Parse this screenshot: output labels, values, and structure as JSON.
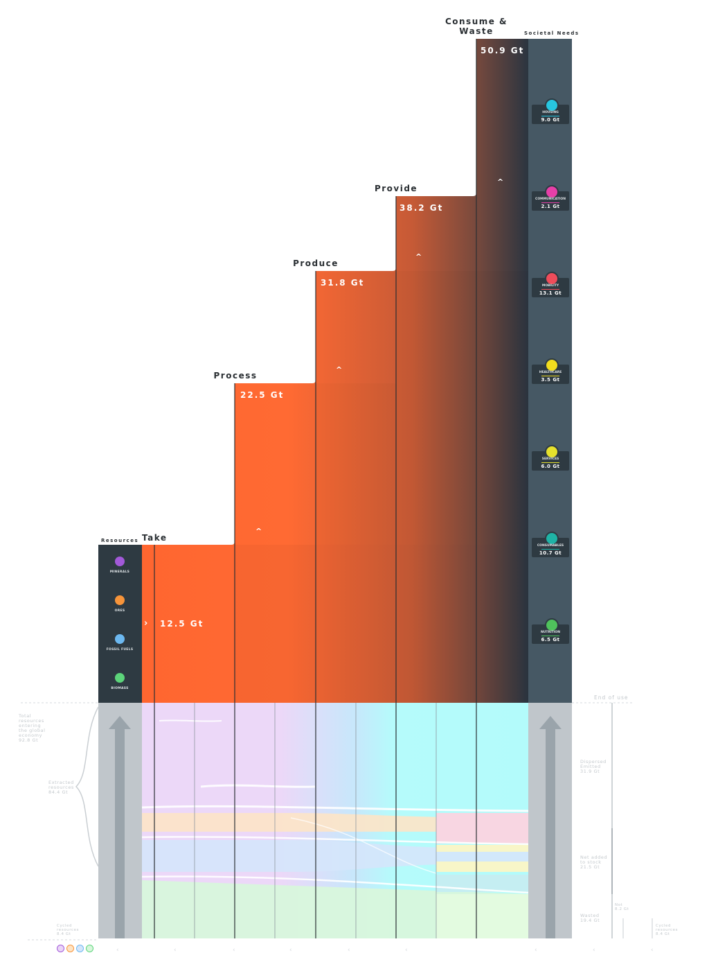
{
  "headers": {
    "resources": "Resources",
    "societal_needs": "Societal Needs",
    "end_of_use": "End of use"
  },
  "stages": [
    {
      "name": "Take",
      "value": 12.5,
      "label": "12.5 Gt"
    },
    {
      "name": "Process",
      "value": 22.5,
      "label": "22.5 Gt"
    },
    {
      "name": "Produce",
      "value": 31.8,
      "label": "31.8 Gt"
    },
    {
      "name": "Provide",
      "value": 38.2,
      "label": "38.2 Gt"
    },
    {
      "name": "Consume &\nWaste",
      "value": 50.9,
      "label": "50.9 Gt"
    }
  ],
  "resources": [
    {
      "name": "MINERALS",
      "icon": "mineral-icon",
      "color": "#a259d9"
    },
    {
      "name": "ORES",
      "icon": "ore-icon",
      "color": "#f7943a"
    },
    {
      "name": "FOSSIL FUELS",
      "icon": "fossil-fuel-icon",
      "color": "#6cb8f0"
    },
    {
      "name": "BIOMASS",
      "icon": "biomass-icon",
      "color": "#5cd47a"
    }
  ],
  "needs": [
    {
      "name": "HOUSING",
      "value": "9.0 Gt",
      "icon": "housing-icon",
      "color": "#27c6e0"
    },
    {
      "name": "COMMUNICATION",
      "value": "2.1 Gt",
      "icon": "communication-icon",
      "color": "#e63fa8"
    },
    {
      "name": "MOBILITY",
      "value": "13.1 Gt",
      "icon": "mobility-icon",
      "color": "#ef4c5a"
    },
    {
      "name": "HEALTHCARE",
      "value": "3.5 Gt",
      "icon": "healthcare-icon",
      "color": "#f2dd1e"
    },
    {
      "name": "SERVICES",
      "value": "6.0 Gt",
      "icon": "services-icon",
      "color": "#e6e12c"
    },
    {
      "name": "CONSUMABLES",
      "value": "10.7 Gt",
      "icon": "consumables-icon",
      "color": "#1fb3a6"
    },
    {
      "name": "NUTRITION",
      "value": "6.5 Gt",
      "icon": "nutrition-icon",
      "color": "#4fc25c"
    }
  ],
  "left_notes": {
    "total": "Total\nresources\nentering\nthe global\neconomy\n92.8 Gt",
    "extracted": "Extracted\nresources\n84.4 Gt",
    "cycled": "Cycled\nresources\n8.4 Gt"
  },
  "right_notes": {
    "dispersed": "Dispersed\nEmitted\n31.9 Gt",
    "net_added": "Net added\nto stock\n21.5 Gt",
    "wasted": "Wasted\n19.4 Gt",
    "small": "Not\n8.2 Gt",
    "cycled": "Cycled\nresources\n8.4 Gt"
  },
  "colors": {
    "orange": "#ff6a32",
    "dark": "#2e3a42",
    "panel": "#465864",
    "gray_band": "#c0c6cb",
    "minerals": "#ebd7f8",
    "ores": "#fde4c6",
    "fossil": "#d5e6fb",
    "biomass": "#d8f7dc",
    "cyan": "#b3fbfb",
    "pink": "#f8d6e2",
    "yellow": "#f8f6c8",
    "teal": "#c5eef2",
    "lightgreen": "#e3fbe0"
  }
}
